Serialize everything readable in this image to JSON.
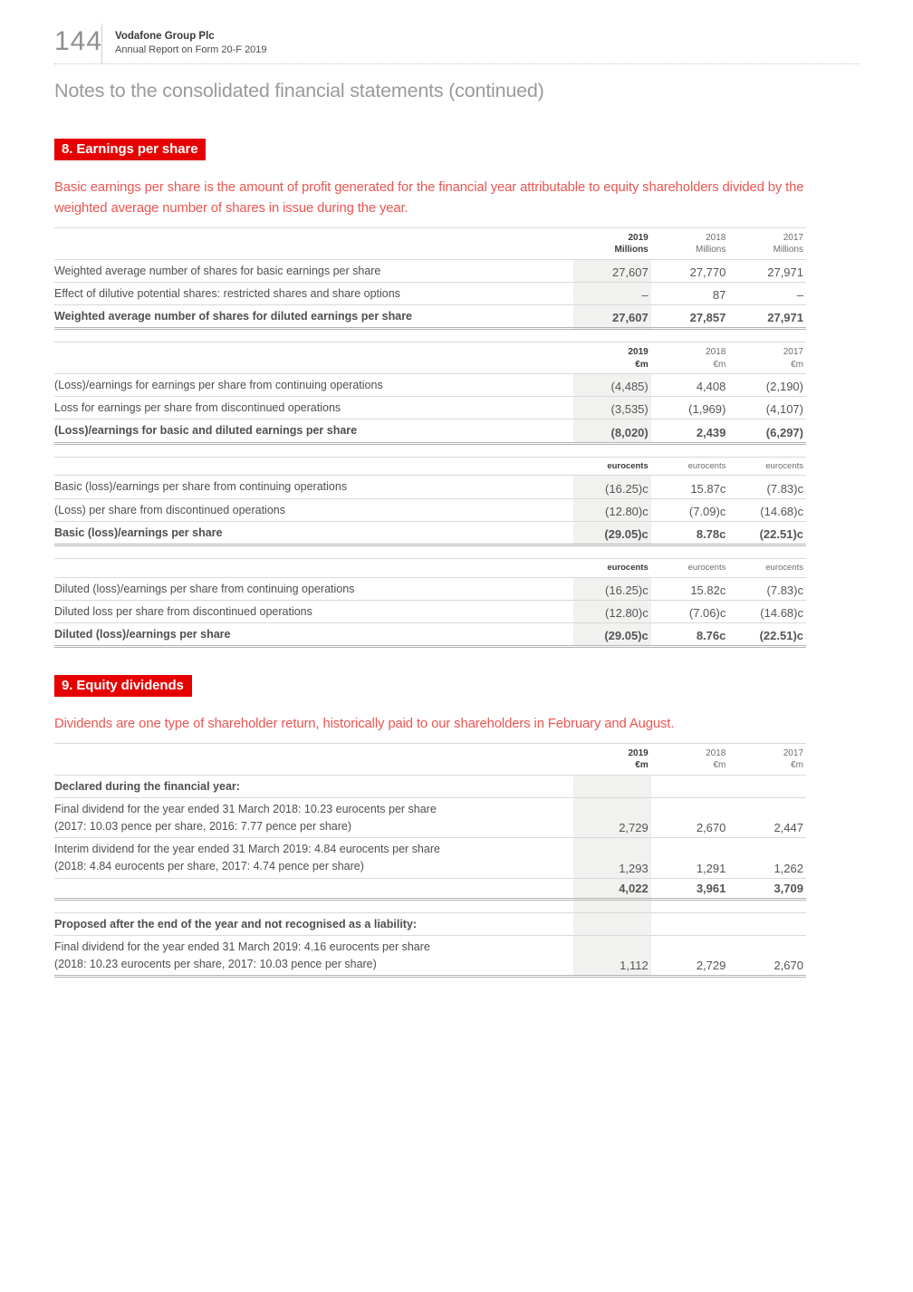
{
  "header": {
    "page_number": "144",
    "company": "Vodafone Group Plc",
    "report": "Annual Report on Form 20-F 2019"
  },
  "page_title": "Notes to the consolidated financial statements (continued)",
  "colors": {
    "brand_red": "#e60000",
    "intro_red": "#ea5550",
    "shade": "#f1f1ef"
  },
  "s8": {
    "heading": "8. Earnings per share",
    "intro": "Basic earnings per share is the amount of profit generated for the financial year attributable to equity shareholders divided by the weighted average number of shares in issue during the year.",
    "shares": {
      "years": [
        "2019",
        "2018",
        "2017"
      ],
      "units": [
        "Millions",
        "Millions",
        "Millions"
      ],
      "rows": [
        {
          "label": "Weighted average number of shares for basic earnings per share",
          "values": [
            "27,607",
            "27,770",
            "27,971"
          ]
        },
        {
          "label": "Effect of dilutive potential shares: restricted shares and share options",
          "values": [
            "–",
            "87",
            "–"
          ]
        },
        {
          "label": "Weighted average number of shares for diluted earnings per share",
          "values": [
            "27,607",
            "27,857",
            "27,971"
          ]
        }
      ]
    },
    "earnings": {
      "years": [
        "2019",
        "2018",
        "2017"
      ],
      "units": [
        "€m",
        "€m",
        "€m"
      ],
      "rows": [
        {
          "label": "(Loss)/earnings for earnings per share from continuing operations",
          "values": [
            "(4,485)",
            "4,408",
            "(2,190)"
          ]
        },
        {
          "label": "Loss for earnings per share from discontinued operations",
          "values": [
            "(3,535)",
            "(1,969)",
            "(4,107)"
          ]
        },
        {
          "label": "(Loss)/earnings for basic and diluted earnings per share",
          "values": [
            "(8,020)",
            "2,439",
            "(6,297)"
          ]
        }
      ]
    },
    "basic_eps": {
      "units": [
        "eurocents",
        "eurocents",
        "eurocents"
      ],
      "rows": [
        {
          "label": "Basic (loss)/earnings per share from continuing operations",
          "values": [
            "(16.25)c",
            "15.87c",
            "(7.83)c"
          ]
        },
        {
          "label": "(Loss) per share from discontinued operations",
          "values": [
            "(12.80)c",
            "(7.09)c",
            "(14.68)c"
          ]
        },
        {
          "label": "Basic (loss)/earnings per share",
          "values": [
            "(29.05)c",
            "8.78c",
            "(22.51)c"
          ]
        }
      ]
    },
    "diluted_eps": {
      "units": [
        "eurocents",
        "eurocents",
        "eurocents"
      ],
      "rows": [
        {
          "label": "Diluted (loss)/earnings per share from continuing operations",
          "values": [
            "(16.25)c",
            "15.82c",
            "(7.83)c"
          ]
        },
        {
          "label": "Diluted loss per share from discontinued operations",
          "values": [
            "(12.80)c",
            "(7.06)c",
            "(14.68)c"
          ]
        },
        {
          "label": "Diluted (loss)/earnings per share",
          "values": [
            "(29.05)c",
            "8.76c",
            "(22.51)c"
          ]
        }
      ]
    }
  },
  "s9": {
    "heading": "9. Equity dividends",
    "intro": "Dividends are one type of shareholder return, historically paid to our shareholders in February and August.",
    "dividends": {
      "years": [
        "2019",
        "2018",
        "2017"
      ],
      "units": [
        "€m",
        "€m",
        "€m"
      ],
      "declared_heading": "Declared during the financial year:",
      "declared_rows": [
        {
          "label": "Final dividend for the year ended 31 March 2018: 10.23 eurocents per share",
          "label2": "(2017: 10.03 pence per share, 2016: 7.77 pence per share)",
          "values": [
            "2,729",
            "2,670",
            "2,447"
          ]
        },
        {
          "label": "Interim dividend for the year ended 31 March 2019: 4.84 eurocents per share",
          "label2": "(2018: 4.84 eurocents per share, 2017: 4.74 pence per share)",
          "values": [
            "1,293",
            "1,291",
            "1,262"
          ]
        }
      ],
      "declared_total": [
        "4,022",
        "3,961",
        "3,709"
      ],
      "proposed_heading": "Proposed after the end of the year and not recognised as a liability:",
      "proposed_rows": [
        {
          "label": "Final dividend for the year ended 31 March 2019: 4.16 eurocents per share",
          "label2": "(2018: 10.23 eurocents per share, 2017: 10.03 pence per share)",
          "values": [
            "1,112",
            "2,729",
            "2,670"
          ]
        }
      ]
    }
  }
}
